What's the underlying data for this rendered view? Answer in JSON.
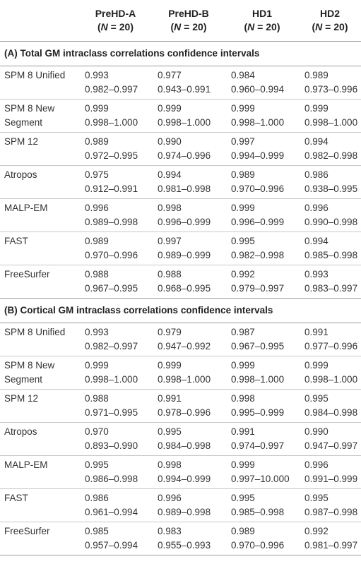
{
  "columns": [
    {
      "name": "PreHD-A",
      "n_prefix": "(",
      "n_var": "N",
      "n_suffix": " = 20)"
    },
    {
      "name": "PreHD-B",
      "n_prefix": "(",
      "n_var": "N",
      "n_suffix": " = 20)"
    },
    {
      "name": "HD1",
      "n_prefix": "(",
      "n_var": "N",
      "n_suffix": " = 20)"
    },
    {
      "name": "HD2",
      "n_prefix": "(",
      "n_var": "N",
      "n_suffix": " = 20)"
    }
  ],
  "sections": [
    {
      "title": "(A) Total GM intraclass correlations confidence intervals",
      "rows": [
        {
          "label": [
            "SPM 8 Unified"
          ],
          "cells": [
            [
              "0.993",
              "0.982–0.997"
            ],
            [
              "0.977",
              "0.943–0.991"
            ],
            [
              "0.984",
              "0.960–0.994"
            ],
            [
              "0.989",
              "0.973–0.996"
            ]
          ]
        },
        {
          "label": [
            "SPM 8 New",
            "Segment"
          ],
          "cells": [
            [
              "0.999",
              "0.998–1.000"
            ],
            [
              "0.999",
              "0.998–1.000"
            ],
            [
              "0.999",
              "0.998–1.000"
            ],
            [
              "0.999",
              "0.998–1.000"
            ]
          ]
        },
        {
          "label": [
            "SPM 12"
          ],
          "cells": [
            [
              "0.989",
              "0.972–0.995"
            ],
            [
              "0.990",
              "0.974–0.996"
            ],
            [
              "0.997",
              "0.994–0.999"
            ],
            [
              "0.994",
              "0.982–0.998"
            ]
          ]
        },
        {
          "label": [
            "Atropos"
          ],
          "cells": [
            [
              "0.975",
              "0.912–0.991"
            ],
            [
              "0.994",
              "0.981–0.998"
            ],
            [
              "0.989",
              "0.970–0.996"
            ],
            [
              "0.986",
              "0.938–0.995"
            ]
          ]
        },
        {
          "label": [
            "MALP-EM"
          ],
          "cells": [
            [
              "0.996",
              "0.989–0.998"
            ],
            [
              "0.998",
              "0.996–0.999"
            ],
            [
              "0.999",
              "0.996–0.999"
            ],
            [
              "0.996",
              "0.990–0.998"
            ]
          ]
        },
        {
          "label": [
            "FAST"
          ],
          "cells": [
            [
              "0.989",
              "0.970–0.996"
            ],
            [
              "0.997",
              "0.989–0.999"
            ],
            [
              "0.995",
              "0.982–0.998"
            ],
            [
              "0.994",
              "0.985–0.998"
            ]
          ]
        },
        {
          "label": [
            "FreeSurfer"
          ],
          "cells": [
            [
              "0.988",
              "0.967–0.995"
            ],
            [
              "0.988",
              "0.968–0.995"
            ],
            [
              "0.992",
              "0.979–0.997"
            ],
            [
              "0.993",
              "0.983–0.997"
            ]
          ]
        }
      ]
    },
    {
      "title": "(B) Cortical GM intraclass correlations confidence intervals",
      "rows": [
        {
          "label": [
            "SPM 8 Unified"
          ],
          "cells": [
            [
              "0.993",
              "0.982–0.997"
            ],
            [
              "0.979",
              "0.947–0.992"
            ],
            [
              "0.987",
              "0.967–0.995"
            ],
            [
              "0.991",
              "0.977–0.996"
            ]
          ]
        },
        {
          "label": [
            "SPM 8 New",
            "Segment"
          ],
          "cells": [
            [
              "0.999",
              "0.998–1.000"
            ],
            [
              "0.999",
              "0.998–1.000"
            ],
            [
              "0.999",
              "0.998–1.000"
            ],
            [
              "0.999",
              "0.998–1.000"
            ]
          ]
        },
        {
          "label": [
            "SPM 12"
          ],
          "cells": [
            [
              "0.988",
              "0.971–0.995"
            ],
            [
              "0.991",
              "0.978–0.996"
            ],
            [
              "0.998",
              "0.995–0.999"
            ],
            [
              "0.995",
              "0.984–0.998"
            ]
          ]
        },
        {
          "label": [
            "Atropos"
          ],
          "cells": [
            [
              "0.970",
              "0.893–0.990"
            ],
            [
              "0.995",
              "0.984–0.998"
            ],
            [
              "0.991",
              "0.974–0.997"
            ],
            [
              "0.990",
              "0.947–0.997"
            ]
          ]
        },
        {
          "label": [
            "MALP-EM"
          ],
          "cells": [
            [
              "0.995",
              "0.986–0.998"
            ],
            [
              "0.998",
              "0.994–0.999"
            ],
            [
              "0.999",
              "0.997–10.000"
            ],
            [
              "0.996",
              "0.991–0.999"
            ]
          ]
        },
        {
          "label": [
            "FAST"
          ],
          "cells": [
            [
              "0.986",
              "0.961–0.994"
            ],
            [
              "0.996",
              "0.989–0.998"
            ],
            [
              "0.995",
              "0.985–0.998"
            ],
            [
              "0.995",
              "0.987–0.998"
            ]
          ]
        },
        {
          "label": [
            "FreeSurfer"
          ],
          "cells": [
            [
              "0.985",
              "0.957–0.994"
            ],
            [
              "0.983",
              "0.955–0.993"
            ],
            [
              "0.989",
              "0.970–0.996"
            ],
            [
              "0.992",
              "0.981–0.997"
            ]
          ]
        }
      ]
    }
  ]
}
